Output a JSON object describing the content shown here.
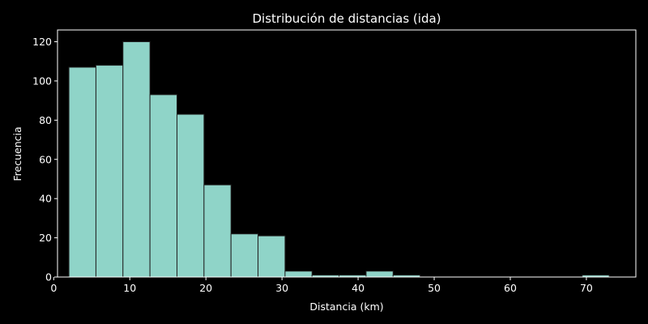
{
  "chart_data": {
    "type": "bar",
    "title": "Distribución de distancias (ida)",
    "xlabel": "Distancia (km)",
    "ylabel": "Frecuencia",
    "xlim": [
      0.5,
      76.5
    ],
    "ylim": [
      0,
      126
    ],
    "xticks": [
      0,
      10,
      20,
      30,
      40,
      50,
      60,
      70
    ],
    "yticks": [
      0,
      20,
      40,
      60,
      80,
      100,
      120
    ],
    "bin_width": 3.55,
    "bins": [
      {
        "start": 2.0,
        "count": 107
      },
      {
        "start": 5.55,
        "count": 108
      },
      {
        "start": 9.1,
        "count": 120
      },
      {
        "start": 12.65,
        "count": 93
      },
      {
        "start": 16.2,
        "count": 83
      },
      {
        "start": 19.75,
        "count": 47
      },
      {
        "start": 23.3,
        "count": 22
      },
      {
        "start": 26.85,
        "count": 21
      },
      {
        "start": 30.4,
        "count": 3
      },
      {
        "start": 33.95,
        "count": 1
      },
      {
        "start": 37.5,
        "count": 1
      },
      {
        "start": 41.05,
        "count": 3
      },
      {
        "start": 44.6,
        "count": 1
      },
      {
        "start": 69.45,
        "count": 1
      }
    ],
    "bar_color": "#8fd4c8",
    "grid": false
  }
}
